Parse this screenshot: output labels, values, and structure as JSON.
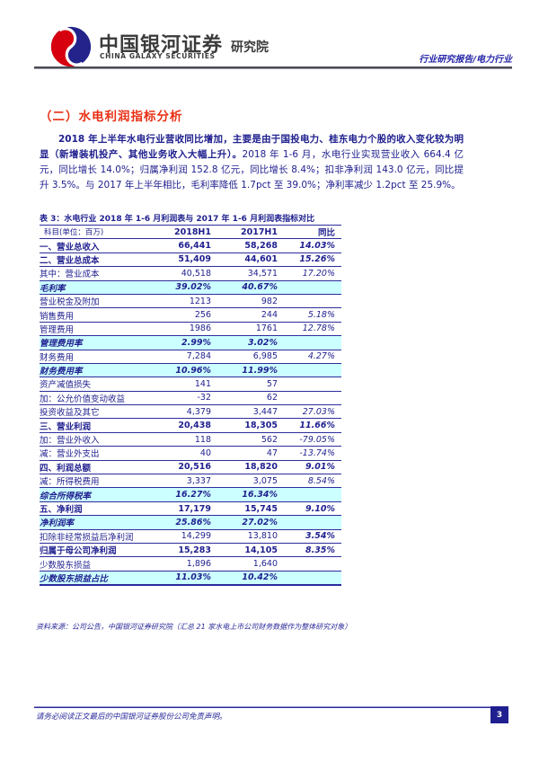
{
  "header": {
    "brand_cn": "中国银河证券",
    "brand_en": "CHINA GALAXY SECURITIES",
    "brand_suffix": "研究院",
    "report_type": "行业研究报告/电力行业"
  },
  "section": {
    "title": "（二）水电利润指标分析",
    "paragraph_bold": "2018 年上半年水电行业营收同比增加，主要是由于国投电力、桂东电力个股的收入变化较为明显（新增装机投产、其他业务收入大幅上升）。",
    "paragraph_rest": "2018 年 1-6 月，水电行业实现营业收入 664.4 亿元，同比增长 14.0%；归属净利润 152.8 亿元，同比增长 8.4%；扣非净利润 143.0 亿元，同比提升 3.5%。与 2017 年上半年相比，毛利率降低 1.7pct 至 39.0%；净利率减少 1.2pct 至 25.9%。"
  },
  "table": {
    "caption": "表 3：水电行业 2018 年 1-6 月利润表与 2017 年 1-6 月利润表指标对比",
    "columns": [
      "科目(单位：百万)",
      "2018H1",
      "2017H1",
      "同比"
    ],
    "rows": [
      {
        "label": "一、营业总收入",
        "v2018": "66,441",
        "v2017": "58,268",
        "yoy": "14.03%",
        "style": "section",
        "indent": 0
      },
      {
        "label": "二、营业总成本",
        "v2018": "51,409",
        "v2017": "44,601",
        "yoy": "15.26%",
        "style": "section",
        "indent": 0
      },
      {
        "label": "其中：营业成本",
        "v2018": "40,518",
        "v2017": "34,571",
        "yoy": "17.20%",
        "style": "normal",
        "indent": 1
      },
      {
        "label": "毛利率",
        "v2018": "39.02%",
        "v2017": "40.67%",
        "yoy": "",
        "style": "rate",
        "indent": 3
      },
      {
        "label": "营业税金及附加",
        "v2018": "1213",
        "v2017": "982",
        "yoy": "",
        "style": "normal",
        "indent": 3
      },
      {
        "label": "销售费用",
        "v2018": "256",
        "v2017": "244",
        "yoy": "5.18%",
        "style": "normal",
        "indent": 3
      },
      {
        "label": "管理费用",
        "v2018": "1986",
        "v2017": "1761",
        "yoy": "12.78%",
        "style": "normal",
        "indent": 3
      },
      {
        "label": "管理费用率",
        "v2018": "2.99%",
        "v2017": "3.02%",
        "yoy": "",
        "style": "rate",
        "indent": 3
      },
      {
        "label": "财务费用",
        "v2018": "7,284",
        "v2017": "6,985",
        "yoy": "4.27%",
        "style": "normal",
        "indent": 3
      },
      {
        "label": "财务费用率",
        "v2018": "10.96%",
        "v2017": "11.99%",
        "yoy": "",
        "style": "rate",
        "indent": 3
      },
      {
        "label": "资产减值损失",
        "v2018": "141",
        "v2017": "57",
        "yoy": "",
        "style": "normal",
        "indent": 3
      },
      {
        "label": "加：公允价值变动收益",
        "v2018": "-32",
        "v2017": "62",
        "yoy": "",
        "style": "normal",
        "indent": 1
      },
      {
        "label": "投资收益及其它",
        "v2018": "4,379",
        "v2017": "3,447",
        "yoy": "27.03%",
        "style": "normal",
        "indent": 3
      },
      {
        "label": "三、营业利润",
        "v2018": "20,438",
        "v2017": "18,305",
        "yoy": "11.66%",
        "style": "section",
        "indent": 0
      },
      {
        "label": "加：营业外收入",
        "v2018": "118",
        "v2017": "562",
        "yoy": "-79.05%",
        "style": "normal",
        "indent": 1
      },
      {
        "label": "减：营业外支出",
        "v2018": "40",
        "v2017": "47",
        "yoy": "-13.74%",
        "style": "normal",
        "indent": 1
      },
      {
        "label": "四、利润总额",
        "v2018": "20,516",
        "v2017": "18,820",
        "yoy": "9.01%",
        "style": "section",
        "indent": 0
      },
      {
        "label": "减：所得税费用",
        "v2018": "3,337",
        "v2017": "3,075",
        "yoy": "8.54%",
        "style": "normal",
        "indent": 1
      },
      {
        "label": "综合所得税率",
        "v2018": "16.27%",
        "v2017": "16.34%",
        "yoy": "",
        "style": "rate",
        "indent": 3
      },
      {
        "label": "五、净利润",
        "v2018": "17,179",
        "v2017": "15,745",
        "yoy": "9.10%",
        "style": "section",
        "indent": 0
      },
      {
        "label": "净利润率",
        "v2018": "25.86%",
        "v2017": "27.02%",
        "yoy": "",
        "style": "rate",
        "indent": 3
      },
      {
        "label": "扣除非经常损益后净利润",
        "v2018": "14,299",
        "v2017": "13,810",
        "yoy": "3.54%",
        "style": "normal",
        "indent": 0,
        "yoy_bold": true
      },
      {
        "label": "归属于母公司净利润",
        "v2018": "15,283",
        "v2017": "14,105",
        "yoy": "8.35%",
        "style": "bold",
        "indent": 2
      },
      {
        "label": "少数股东损益",
        "v2018": "1,896",
        "v2017": "1,640",
        "yoy": "",
        "style": "normal",
        "indent": 2
      },
      {
        "label": "少数股东损益占比",
        "v2018": "11.03%",
        "v2017": "10.42%",
        "yoy": "",
        "style": "rate",
        "indent": 2
      }
    ],
    "source": "资料来源：公司公告，中国银河证券研究院（汇总 21 家水电上市公司财务数据作为整体研究对象）"
  },
  "footer": {
    "disclaimer": "请务必阅读正文最后的中国银河证券股份公司免责声明。",
    "page_number": "3"
  },
  "colors": {
    "navy_text": "#1f1f8f",
    "table_border": "#2c2c9c",
    "rate_row_bg": "#ccffff",
    "title_red": "#e83015",
    "logo_red": "#d7000f",
    "logo_blue": "#23238b",
    "page_badge_bg": "#1f1f8f"
  }
}
